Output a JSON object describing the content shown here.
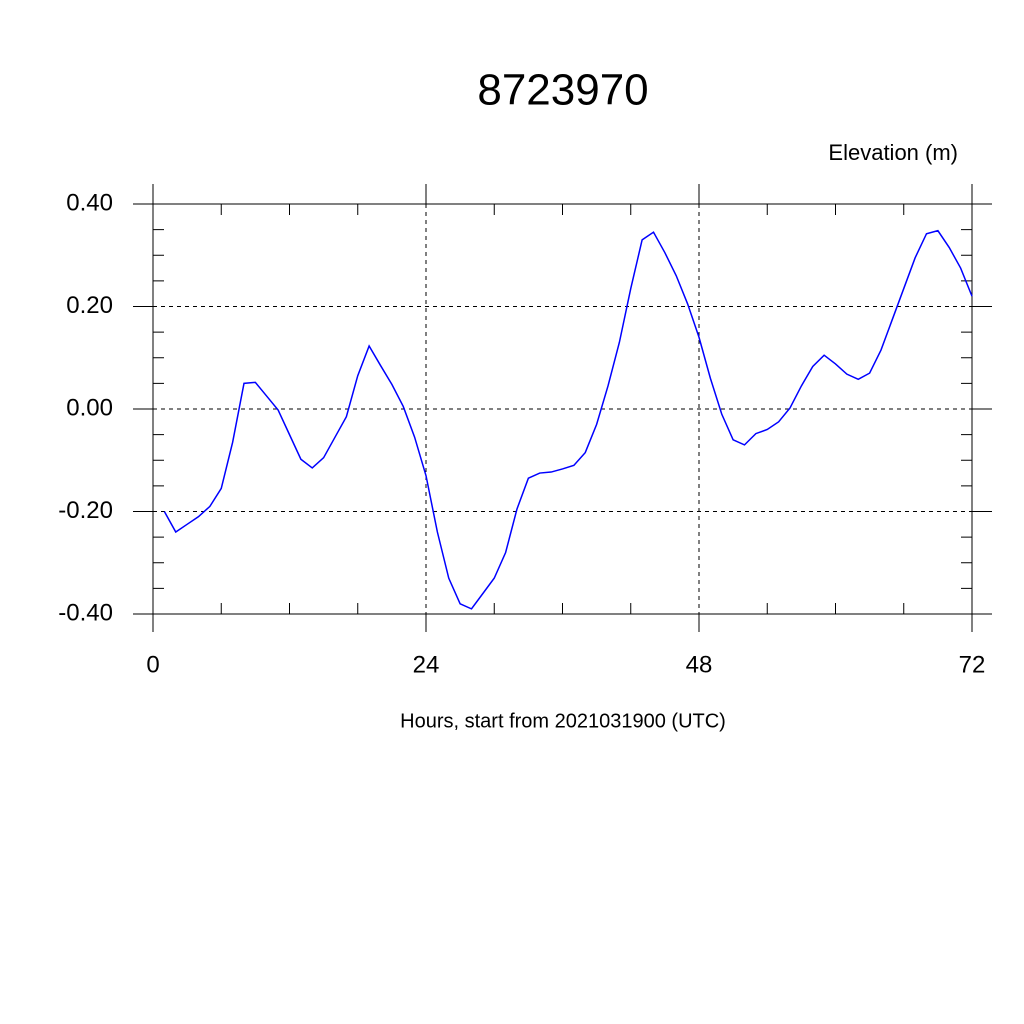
{
  "chart_data": {
    "type": "line",
    "title": "8723970",
    "subtitle": "Elevation (m)",
    "x_label": "Hours, start from 2021031900 (UTC)",
    "x": [
      1,
      2,
      3,
      4,
      5,
      6,
      7,
      8,
      9,
      10,
      11,
      12,
      13,
      14,
      15,
      16,
      17,
      18,
      19,
      20,
      21,
      22,
      23,
      24,
      25,
      26,
      27,
      28,
      29,
      30,
      31,
      32,
      33,
      34,
      35,
      36,
      37,
      38,
      39,
      40,
      41,
      42,
      43,
      44,
      45,
      46,
      47,
      48,
      49,
      50,
      51,
      52,
      53,
      54,
      55,
      56,
      57,
      58,
      59,
      60,
      61,
      62,
      63,
      64,
      65,
      66,
      67,
      68,
      69,
      70,
      71,
      72
    ],
    "series": [
      {
        "color": "#0000ff",
        "values": [
          -0.2,
          -0.24,
          -0.225,
          -0.21,
          -0.19,
          -0.155,
          -0.065,
          0.05,
          0.052,
          0.025,
          -0.002,
          -0.05,
          -0.098,
          -0.115,
          -0.095,
          -0.055,
          -0.015,
          0.065,
          0.123,
          0.085,
          0.048,
          0.005,
          -0.055,
          -0.13,
          -0.24,
          -0.33,
          -0.38,
          -0.39,
          -0.36,
          -0.33,
          -0.28,
          -0.195,
          -0.135,
          -0.125,
          -0.123,
          -0.117,
          -0.11,
          -0.085,
          -0.03,
          0.045,
          0.13,
          0.235,
          0.33,
          0.345,
          0.305,
          0.26,
          0.205,
          0.14,
          0.06,
          -0.01,
          -0.06,
          -0.07,
          -0.048,
          -0.04,
          -0.025,
          0.002,
          0.045,
          0.083,
          0.105,
          0.088,
          0.068,
          0.058,
          0.07,
          0.115,
          0.175,
          0.235,
          0.295,
          0.342,
          0.348,
          0.315,
          0.275,
          0.22
        ]
      }
    ],
    "xlim": [
      0,
      72
    ],
    "xticks": [
      0,
      24,
      48,
      72
    ],
    "ylim": [
      -0.4,
      0.4
    ],
    "yticks": [
      {
        "value": -0.4,
        "label": "-0.40"
      },
      {
        "value": -0.2,
        "label": "-0.20"
      },
      {
        "value": 0,
        "label": "0.00"
      },
      {
        "value": 0.2,
        "label": "0.20"
      },
      {
        "value": 0.4,
        "label": "0.40"
      }
    ],
    "grid": true
  }
}
